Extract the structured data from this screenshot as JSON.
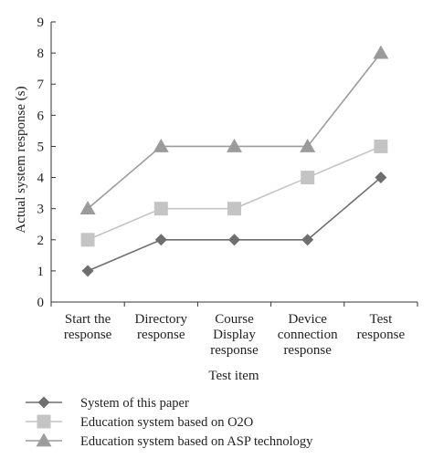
{
  "chart_data": {
    "type": "line",
    "xlabel": "Test item",
    "ylabel": "Actual system response (s)",
    "categories": [
      [
        "Start the",
        "response"
      ],
      [
        "Directory",
        "response"
      ],
      [
        "Course",
        "Display",
        "response"
      ],
      [
        "Device",
        "connection",
        "response"
      ],
      [
        "Test",
        "response"
      ]
    ],
    "ylim": [
      0,
      9
    ],
    "yticks": [
      0,
      1,
      2,
      3,
      4,
      5,
      6,
      7,
      8,
      9
    ],
    "grid": false,
    "legend_position": "bottom",
    "series": [
      {
        "name": "System of this paper",
        "values": [
          1,
          2,
          2,
          2,
          4
        ],
        "marker": "diamond",
        "color": "#6e6e6e"
      },
      {
        "name": "Education system based on O2O",
        "values": [
          2,
          3,
          3,
          4,
          5
        ],
        "marker": "square",
        "color": "#c4c4c4"
      },
      {
        "name": "Education system based on ASP technology",
        "values": [
          3,
          5,
          5,
          5,
          8
        ],
        "marker": "triangle",
        "color": "#9b9b9b"
      }
    ]
  }
}
